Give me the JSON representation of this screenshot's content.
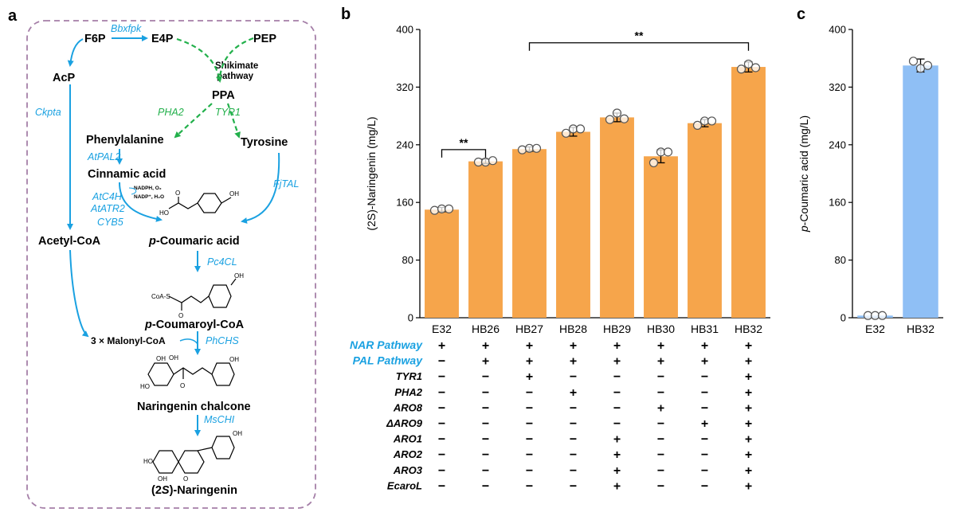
{
  "panels": {
    "a": "a",
    "b": "b",
    "c": "c"
  },
  "pathway": {
    "nodes": {
      "f6p": "F6P",
      "e4p": "E4P",
      "pep": "PEP",
      "acp": "AcP",
      "ppa": "PPA",
      "shikimate_1": "Shikimate",
      "shikimate_2": "pathway",
      "phenylalanine": "Phenylalanine",
      "tyrosine": "Tyrosine",
      "cinnamic": "Cinnamic acid",
      "acetyl_coa": "Acetyl-CoA",
      "coumaric_p": "p",
      "coumaric_rest": "-Coumaric acid",
      "coumaroyl_p": "p",
      "coumaroyl_rest": "-Coumaroyl-CoA",
      "malonyl": "3 × Malonyl-CoA",
      "chalcone": "Naringenin chalcone",
      "naringenin_pre": "(2",
      "naringenin_s": "S",
      "naringenin_post": ")-Naringenin"
    },
    "enzymes": {
      "bbxfpk": "Bbxfpk",
      "ckpta": "Ckpta",
      "pha2": "PHA2",
      "tyr1": "TYR1",
      "atpal2": "AtPAL2",
      "atc4h": "AtC4H",
      "atatr2": "AtATR2",
      "cyb5": "CYB5",
      "fjtal": "FjTAL",
      "pc4cl": "Pc4CL",
      "phchs": "PhCHS",
      "mschi": "MsCHI"
    },
    "cofactors": {
      "nadph": "NADPH, O₂",
      "nadp": "NADP⁺, H₂O"
    },
    "chem_labels": {
      "oh": "OH",
      "o": "O",
      "ho": "HO",
      "coas": "CoA-S"
    },
    "colors": {
      "enzyme": "#1aa1e1",
      "shikimate": "#22b04b",
      "border": "#a57fa8"
    }
  },
  "chart_data": [
    {
      "type": "bar",
      "categories": [
        "E32",
        "HB26",
        "HB27",
        "HB28",
        "HB29",
        "HB30",
        "HB31",
        "HB32"
      ],
      "values": [
        150,
        217,
        234,
        258,
        278,
        224,
        270,
        348
      ],
      "errors": [
        3,
        3,
        3,
        6,
        6,
        9,
        5,
        7
      ],
      "points": [
        [
          149,
          151,
          151
        ],
        [
          216,
          216,
          218
        ],
        [
          233,
          235,
          235
        ],
        [
          256,
          262,
          262
        ],
        [
          275,
          284,
          276
        ],
        [
          215,
          230,
          230
        ],
        [
          267,
          273,
          273
        ],
        [
          345,
          352,
          347
        ]
      ],
      "ylabel": "(2S)-Naringenin (mg/L)",
      "ylim": [
        0,
        400
      ],
      "yticks": [
        0,
        80,
        160,
        240,
        320,
        400
      ],
      "color": "#f6a54b",
      "significance": [
        {
          "from": "E32",
          "to": "HB26",
          "label": "**"
        },
        {
          "from": "HB27",
          "to": "HB32",
          "label": "**"
        }
      ],
      "table": {
        "rows": [
          {
            "label": "NAR Pathway",
            "highlight": true,
            "signs": [
              "+",
              "+",
              "+",
              "+",
              "+",
              "+",
              "+",
              "+"
            ]
          },
          {
            "label": "PAL Pathway",
            "highlight": true,
            "signs": [
              "−",
              "+",
              "+",
              "+",
              "+",
              "+",
              "+",
              "+"
            ]
          },
          {
            "label": "TYR1",
            "highlight": false,
            "signs": [
              "−",
              "−",
              "+",
              "−",
              "−",
              "−",
              "−",
              "+"
            ]
          },
          {
            "label": "PHA2",
            "highlight": false,
            "signs": [
              "−",
              "−",
              "−",
              "+",
              "−",
              "−",
              "−",
              "+"
            ]
          },
          {
            "label": "ARO8",
            "highlight": false,
            "signs": [
              "−",
              "−",
              "−",
              "−",
              "−",
              "+",
              "−",
              "+"
            ]
          },
          {
            "label": "ΔARO9",
            "highlight": false,
            "signs": [
              "−",
              "−",
              "−",
              "−",
              "−",
              "−",
              "+",
              "+"
            ]
          },
          {
            "label": "ARO1",
            "highlight": false,
            "signs": [
              "−",
              "−",
              "−",
              "−",
              "+",
              "−",
              "−",
              "+"
            ]
          },
          {
            "label": "ARO2",
            "highlight": false,
            "signs": [
              "−",
              "−",
              "−",
              "−",
              "+",
              "−",
              "−",
              "+"
            ]
          },
          {
            "label": "ARO3",
            "highlight": false,
            "signs": [
              "−",
              "−",
              "−",
              "−",
              "+",
              "−",
              "−",
              "+"
            ]
          },
          {
            "label": "EcaroL",
            "highlight": false,
            "signs": [
              "−",
              "−",
              "−",
              "−",
              "+",
              "−",
              "−",
              "+"
            ]
          }
        ]
      }
    },
    {
      "type": "bar",
      "categories": [
        "E32",
        "HB32"
      ],
      "values": [
        3,
        350
      ],
      "errors": [
        0,
        9
      ],
      "points": [
        [
          3,
          3,
          3
        ],
        [
          356,
          346,
          350
        ]
      ],
      "ylabel_prefix": "p",
      "ylabel_rest": "-Coumaric acid (mg/L)",
      "ylim": [
        0,
        400
      ],
      "yticks": [
        0,
        80,
        160,
        240,
        320,
        400
      ],
      "color": "#8fbff5"
    }
  ]
}
